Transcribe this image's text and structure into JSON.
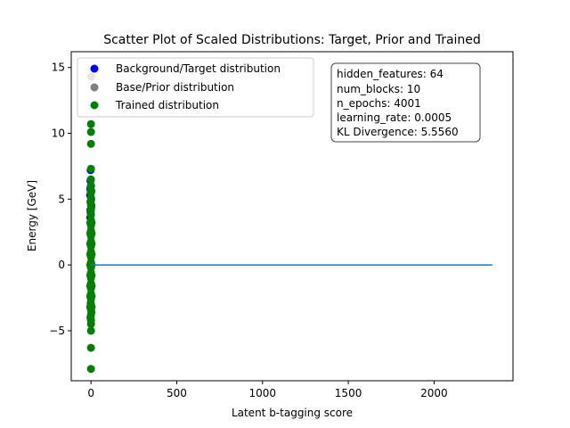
{
  "chart_data": {
    "type": "scatter",
    "title": "Scatter Plot of Scaled Distributions: Target, Prior and Trained",
    "xlabel": "Latent b-tagging score",
    "ylabel": "Energy [GeV]",
    "xlim": [
      -115,
      2460
    ],
    "ylim": [
      -8.8,
      16.2
    ],
    "xticks": [
      0,
      500,
      1000,
      1500,
      2000
    ],
    "yticks": [
      -5,
      0,
      5,
      10,
      15
    ],
    "xtick_labels": [
      "0",
      "500",
      "1000",
      "1500",
      "2000"
    ],
    "ytick_labels": [
      "−5",
      "0",
      "5",
      "10",
      "15"
    ],
    "grid": false,
    "legend_position": "top-left",
    "series": [
      {
        "name": "Background/Target distribution",
        "color": "#0000ff",
        "marker": "circle",
        "points": [
          [
            -4,
            3.6
          ],
          [
            -3,
            4.2
          ],
          [
            -2,
            4.8
          ],
          [
            -5,
            5.3
          ],
          [
            -1,
            5.6
          ],
          [
            0,
            6.0
          ],
          [
            -3,
            6.4
          ],
          [
            -2,
            4.0
          ],
          [
            -1,
            3.3
          ],
          [
            1,
            5.0
          ],
          [
            2,
            4.5
          ],
          [
            -4,
            5.8
          ],
          [
            -2,
            7.2
          ]
        ]
      },
      {
        "name": "Base/Prior distribution",
        "color": "#808080",
        "marker": "circle",
        "points": [
          [
            1,
            14.3
          ]
        ]
      },
      {
        "name": "Trained distribution",
        "color": "#008000",
        "marker": "circle",
        "points": [
          [
            0,
            10.7
          ],
          [
            0,
            10.1
          ],
          [
            0,
            9.2
          ],
          [
            0,
            7.3
          ],
          [
            0,
            6.5
          ],
          [
            0,
            6.0
          ],
          [
            0,
            5.5
          ],
          [
            0,
            5.1
          ],
          [
            0,
            4.6
          ],
          [
            0,
            4.2
          ],
          [
            0,
            3.8
          ],
          [
            0,
            3.4
          ],
          [
            0,
            3.0
          ],
          [
            0,
            2.6
          ],
          [
            0,
            2.2
          ],
          [
            0,
            1.8
          ],
          [
            0,
            1.4
          ],
          [
            0,
            1.0
          ],
          [
            0,
            0.6
          ],
          [
            0,
            0.2
          ],
          [
            0,
            -0.2
          ],
          [
            0,
            -0.6
          ],
          [
            0,
            -1.0
          ],
          [
            0,
            -1.4
          ],
          [
            0,
            -1.8
          ],
          [
            0,
            -2.2
          ],
          [
            0,
            -2.6
          ],
          [
            0,
            -3.0
          ],
          [
            0,
            -3.4
          ],
          [
            0,
            -3.8
          ],
          [
            0,
            -4.2
          ],
          [
            0,
            -4.5
          ],
          [
            0,
            -5.0
          ],
          [
            0,
            -6.3
          ],
          [
            0,
            -7.9
          ],
          [
            -4,
            3.2
          ],
          [
            -4,
            2.4
          ],
          [
            -4,
            1.6
          ],
          [
            -4,
            0.8
          ],
          [
            -4,
            0.0
          ],
          [
            -4,
            -0.8
          ],
          [
            -4,
            -1.6
          ],
          [
            -4,
            -2.4
          ],
          [
            -4,
            -3.2
          ],
          [
            4,
            3.2
          ],
          [
            4,
            2.4
          ],
          [
            4,
            1.6
          ],
          [
            4,
            0.8
          ],
          [
            4,
            0.0
          ],
          [
            4,
            -0.8
          ],
          [
            4,
            -1.6
          ],
          [
            4,
            -2.4
          ],
          [
            4,
            -3.2
          ],
          [
            -3,
            4.8
          ],
          [
            3,
            5.6
          ],
          [
            -3,
            -4.0
          ],
          [
            3,
            -3.6
          ],
          [
            -2,
            5.9
          ],
          [
            2,
            4.4
          ],
          [
            -2,
            -2.9
          ]
        ]
      },
      {
        "name": "",
        "color": "#1f77b4",
        "marker": "line",
        "points": [
          [
            0,
            0
          ],
          [
            2340,
            0
          ]
        ]
      }
    ]
  },
  "info_box": {
    "lines": [
      "hidden_features: 64",
      "num_blocks: 10",
      "n_epochs: 4001",
      "learning_rate: 0.0005",
      "KL Divergence: 5.5560"
    ]
  }
}
